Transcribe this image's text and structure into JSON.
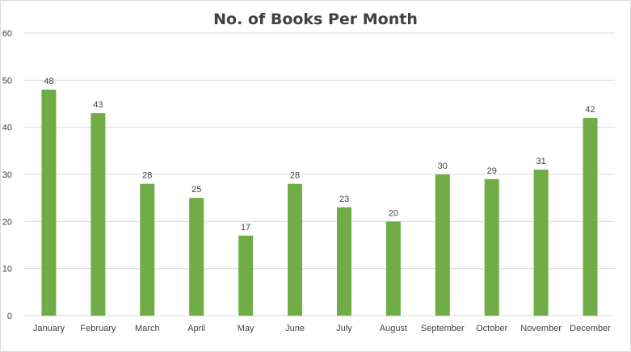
{
  "chart_data": {
    "type": "bar",
    "title": "No. of Books Per Month",
    "xlabel": "",
    "ylabel": "",
    "categories": [
      "January",
      "February",
      "March",
      "April",
      "May",
      "June",
      "July",
      "August",
      "September",
      "October",
      "November",
      "December"
    ],
    "values": [
      48,
      43,
      28,
      25,
      17,
      28,
      23,
      20,
      30,
      29,
      31,
      42
    ],
    "ylim": [
      0,
      60
    ],
    "yticks": [
      0,
      10,
      20,
      30,
      40,
      50,
      60
    ],
    "grid": true,
    "legend": "none",
    "data_labels": true,
    "bar_color": "#70ad47",
    "grid_color": "#d9d9d9"
  }
}
